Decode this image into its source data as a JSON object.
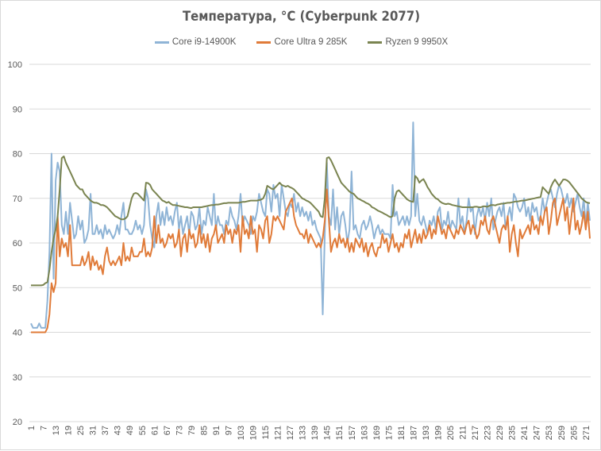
{
  "chart_data": {
    "type": "line",
    "title": "Температура, °C (Cyberpunk 2077)",
    "xlabel": "",
    "ylabel": "",
    "ylim": [
      20,
      100
    ],
    "yticks": [
      20,
      30,
      40,
      50,
      60,
      70,
      80,
      90,
      100
    ],
    "x_start": 1,
    "x_end": 273,
    "x_tick_step": 6,
    "grid": "horizontal",
    "legend_position": "top",
    "series": [
      {
        "name": "Core i9-14900K",
        "color": "#8FB4D6",
        "values": [
          42,
          41,
          41,
          41,
          42,
          41,
          41,
          41,
          47,
          58,
          80,
          52,
          74,
          78,
          76,
          64,
          62,
          67,
          62,
          69,
          65,
          61,
          62,
          66,
          63,
          65,
          60,
          61,
          63,
          71,
          62,
          62,
          64,
          62,
          63,
          61,
          64,
          62,
          63,
          62,
          61,
          62,
          64,
          62,
          66,
          69,
          63,
          63,
          62,
          62,
          63,
          65,
          63,
          64,
          62,
          64,
          72,
          70,
          64,
          61,
          59,
          66,
          69,
          64,
          67,
          64,
          68,
          65,
          66,
          64,
          67,
          69,
          63,
          66,
          62,
          64,
          66,
          62,
          67,
          66,
          63,
          64,
          68,
          62,
          65,
          64,
          68,
          66,
          64,
          71,
          63,
          66,
          64,
          64,
          62,
          65,
          64,
          68,
          66,
          65,
          63,
          66,
          71,
          64,
          66,
          65,
          64,
          62,
          66,
          65,
          67,
          71,
          69,
          67,
          66,
          72,
          71,
          67,
          73,
          70,
          71,
          66,
          73,
          70,
          67,
          66,
          69,
          68,
          71,
          67,
          69,
          66,
          68,
          66,
          67,
          65,
          67,
          64,
          65,
          63,
          62,
          61,
          44,
          62,
          78,
          66,
          64,
          72,
          63,
          68,
          62,
          66,
          67,
          64,
          60,
          63,
          76,
          63,
          64,
          62,
          61,
          64,
          65,
          63,
          64,
          66,
          64,
          61,
          63,
          64,
          62,
          63,
          62,
          62,
          62,
          61,
          73,
          66,
          67,
          64,
          65,
          66,
          64,
          66,
          64,
          66,
          87,
          66,
          71,
          65,
          64,
          66,
          64,
          62,
          65,
          64,
          66,
          63,
          67,
          68,
          63,
          65,
          64,
          67,
          63,
          65,
          64,
          63,
          70,
          64,
          66,
          62,
          65,
          70,
          67,
          68,
          62,
          66,
          68,
          66,
          68,
          65,
          69,
          66,
          70,
          63,
          65,
          67,
          68,
          66,
          69,
          63,
          66,
          68,
          65,
          71,
          70,
          68,
          67,
          68,
          70,
          66,
          68,
          65,
          69,
          67,
          68,
          65,
          66,
          70,
          67,
          69,
          71,
          72,
          70,
          68,
          71,
          73,
          72,
          70,
          69,
          71,
          68,
          70,
          67,
          69,
          71,
          68,
          66,
          70,
          64,
          69,
          65
        ]
      },
      {
        "name": "Core Ultra 9 285K",
        "color": "#E07B39",
        "values": [
          40,
          40,
          40,
          40,
          40,
          40,
          40,
          40,
          41,
          44,
          51,
          49,
          51,
          66,
          57,
          61,
          59,
          60,
          57,
          64,
          55,
          55,
          55,
          55,
          55,
          57,
          55,
          56,
          58,
          54,
          57,
          55,
          56,
          54,
          55,
          53,
          57,
          59,
          56,
          55,
          56,
          55,
          56,
          57,
          55,
          60,
          56,
          57,
          56,
          59,
          57,
          57,
          57,
          58,
          58,
          61,
          57,
          58,
          57,
          59,
          66,
          60,
          64,
          60,
          61,
          59,
          60,
          62,
          61,
          62,
          59,
          60,
          63,
          57,
          61,
          62,
          58,
          63,
          61,
          62,
          59,
          60,
          64,
          60,
          62,
          59,
          62,
          58,
          61,
          62,
          64,
          60,
          61,
          62,
          60,
          64,
          62,
          63,
          60,
          63,
          62,
          64,
          58,
          66,
          62,
          63,
          61,
          66,
          62,
          63,
          58,
          64,
          63,
          61,
          65,
          66,
          60,
          62,
          66,
          65,
          66,
          65,
          64,
          63,
          67,
          68,
          69,
          70,
          66,
          64,
          63,
          62,
          62,
          61,
          63,
          60,
          62,
          61,
          60,
          59,
          60,
          59,
          61,
          65,
          72,
          65,
          58,
          60,
          61,
          59,
          62,
          60,
          61,
          59,
          61,
          58,
          60,
          58,
          61,
          60,
          59,
          61,
          58,
          60,
          57,
          59,
          60,
          58,
          57,
          59,
          59,
          62,
          60,
          61,
          58,
          60,
          62,
          59,
          60,
          58,
          60,
          59,
          62,
          61,
          63,
          59,
          61,
          63,
          60,
          62,
          60,
          63,
          61,
          62,
          64,
          61,
          63,
          62,
          66,
          64,
          62,
          63,
          61,
          64,
          63,
          62,
          61,
          63,
          62,
          64,
          63,
          62,
          64,
          65,
          62,
          64,
          63,
          61,
          62,
          65,
          64,
          66,
          63,
          62,
          65,
          66,
          64,
          62,
          60,
          63,
          64,
          63,
          66,
          58,
          62,
          64,
          60,
          57,
          63,
          61,
          62,
          63,
          64,
          62,
          66,
          63,
          64,
          62,
          66,
          64,
          67,
          68,
          62,
          65,
          69,
          70,
          64,
          66,
          68,
          70,
          65,
          68,
          62,
          66,
          70,
          63,
          65,
          62,
          64,
          67,
          63,
          67,
          61
        ]
      },
      {
        "name": "Ryzen 9 9950X",
        "color": "#7A8450",
        "values": [
          50.5,
          50.5,
          50.5,
          50.5,
          50.5,
          50.5,
          50.6,
          51,
          51.2,
          54,
          58,
          61,
          63,
          66,
          72,
          79,
          79.4,
          78,
          77,
          76,
          75,
          74,
          73,
          72.5,
          72,
          72,
          71,
          70.5,
          70,
          69.5,
          69.2,
          69,
          69,
          68.8,
          68.5,
          68.5,
          68.3,
          68,
          67.5,
          67,
          66.5,
          66,
          65.8,
          65.5,
          65.3,
          65.3,
          65.5,
          66,
          68,
          70,
          71,
          71.2,
          71,
          70.5,
          70,
          69.5,
          73.5,
          73.4,
          73,
          72,
          71.5,
          71,
          70.5,
          70,
          69.5,
          69.3,
          69,
          69.2,
          68.8,
          68.5,
          68.5,
          68.4,
          68.3,
          68.2,
          68.1,
          68,
          68,
          67.9,
          67.8,
          68,
          68,
          68,
          68,
          68,
          68.1,
          68.2,
          68.3,
          68.4,
          68.5,
          68.5,
          68.6,
          68.6,
          68.7,
          68.8,
          68.9,
          68.9,
          69,
          69,
          69,
          69,
          69,
          69,
          69.1,
          69.2,
          69.2,
          69.3,
          69.4,
          69.5,
          69.5,
          69.5,
          69.5,
          69.6,
          69.7,
          70,
          71,
          72.8,
          72.5,
          72.2,
          72,
          72.5,
          73,
          73.5,
          73,
          72.8,
          72.6,
          72.8,
          72.5,
          72.3,
          72,
          71.5,
          71,
          70.5,
          70,
          69.8,
          69.5,
          69.3,
          69,
          68.5,
          68,
          67.5,
          67,
          66,
          65.8,
          70,
          79,
          79.2,
          78.5,
          77.5,
          76.5,
          75.5,
          74.5,
          73.5,
          73,
          72.5,
          72,
          71.5,
          71.2,
          71,
          70.5,
          70,
          69.8,
          69.5,
          69.3,
          69,
          68.8,
          68.5,
          68,
          67.8,
          67.5,
          67.2,
          67,
          66.8,
          66.5,
          66.3,
          66,
          65.8,
          66,
          70,
          71.5,
          71.8,
          71.3,
          70.8,
          70.3,
          69.8,
          69.5,
          69.3,
          69.2,
          75,
          74.5,
          73.5,
          74,
          74.3,
          73.5,
          72.5,
          71.8,
          71,
          70.5,
          70,
          69.8,
          69.3,
          69,
          68.8,
          68.7,
          68.8,
          68.7,
          68.5,
          68.4,
          68.3,
          68.2,
          68.1,
          68,
          68,
          68,
          68,
          68,
          68,
          68.1,
          68.1,
          68,
          68,
          68.2,
          68.2,
          68.1,
          68.3,
          68.5,
          68.5,
          68.4,
          68.6,
          68.7,
          68.8,
          68.8,
          68.9,
          69,
          69,
          69.1,
          69.2,
          69.3,
          69.3,
          69.4,
          69.5,
          69.5,
          69.6,
          69.7,
          69.8,
          69.9,
          70,
          70.1,
          70.2,
          70.3,
          72.5,
          72,
          71.5,
          71,
          72.5,
          73.5,
          74.2,
          73.5,
          72.8,
          73.5,
          74.2,
          74.2,
          74,
          73.6,
          73,
          72.4,
          71.8,
          71.2,
          70.6,
          70,
          69.6,
          69.2,
          69,
          68.9
        ]
      }
    ]
  }
}
